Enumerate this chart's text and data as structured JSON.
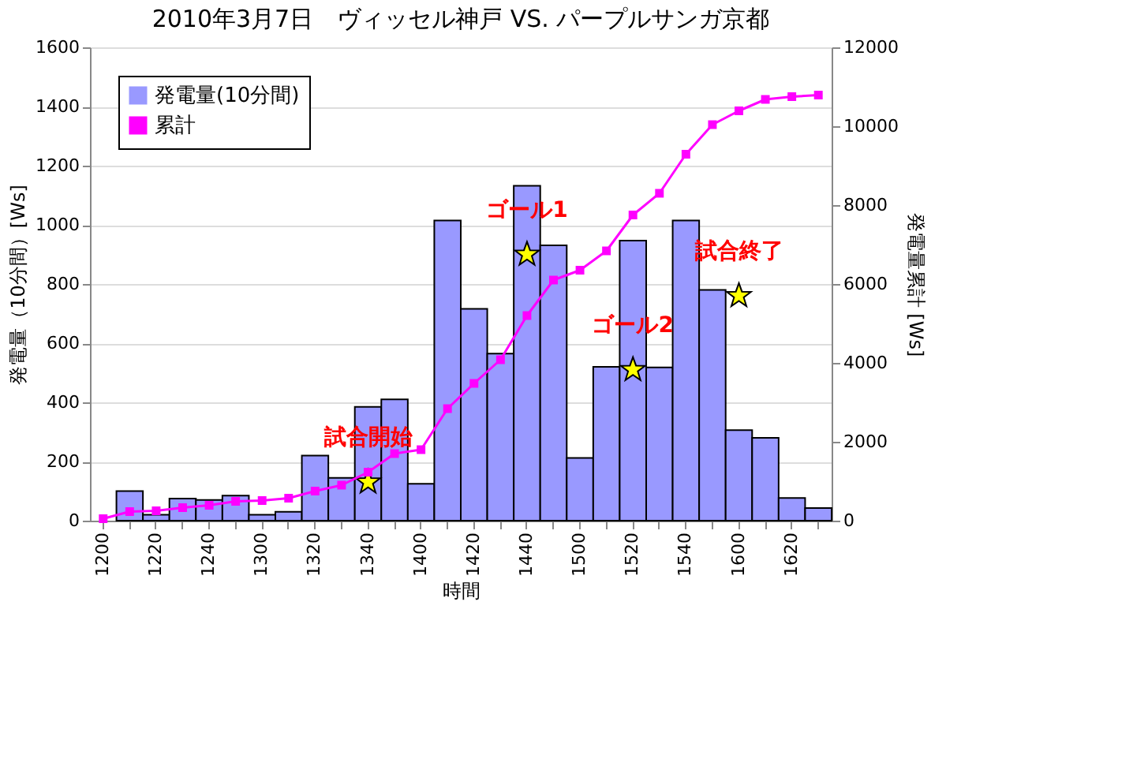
{
  "chart_data": {
    "type": "bar",
    "title": "2010年3月7日　ヴィッセル神戸 VS. パープルサンガ京都",
    "xlabel": "時間",
    "ylabel": "発電量（10分間）[Ws]",
    "y2label": "発電量累計 [Ws]",
    "categories": [
      "1200",
      null,
      "1220",
      null,
      "1240",
      null,
      "1300",
      null,
      "1320",
      null,
      "1340",
      null,
      "1400",
      null,
      "1420",
      null,
      "1440",
      null,
      "1500",
      null,
      "1520",
      null,
      "1540",
      null,
      "1600",
      null,
      "1620",
      null
    ],
    "series": [
      {
        "name": "発電量(10分間)",
        "color": "#9999ff",
        "values": [
          null,
          100,
          20,
          75,
          70,
          85,
          20,
          30,
          220,
          145,
          385,
          410,
          125,
          1015,
          716,
          565,
          1132,
          931,
          212,
          520,
          947,
          518,
          1015,
          780,
          306,
          280,
          77,
          43
        ]
      },
      {
        "name": "累計",
        "type": "line",
        "axis": "y2",
        "color": "#ff00ff",
        "marker": "square",
        "values": [
          50,
          230,
          250,
          330,
          390,
          490,
          510,
          570,
          750,
          900,
          1230,
          1700,
          1800,
          2840,
          3480,
          4080,
          5200,
          6100,
          6350,
          6840,
          7750,
          8300,
          9290,
          10040,
          10390,
          10680,
          10750,
          10790
        ]
      }
    ],
    "ylim": [
      0,
      1600
    ],
    "yticks": [
      0,
      200,
      400,
      600,
      800,
      1000,
      1200,
      1400,
      1600
    ],
    "y2lim": [
      0,
      12000
    ],
    "y2ticks": [
      0,
      2000,
      4000,
      6000,
      8000,
      10000,
      12000
    ],
    "grid": "y",
    "legend": "top left",
    "annotations": [
      {
        "text": "試合開始",
        "x": "1340",
        "y": 130
      },
      {
        "text": "ゴール1",
        "x": "1440",
        "y": 900
      },
      {
        "text": "ゴール2",
        "x": "1520",
        "y": 510
      },
      {
        "text": "試合終了",
        "x": "1600",
        "y": 760
      }
    ]
  }
}
